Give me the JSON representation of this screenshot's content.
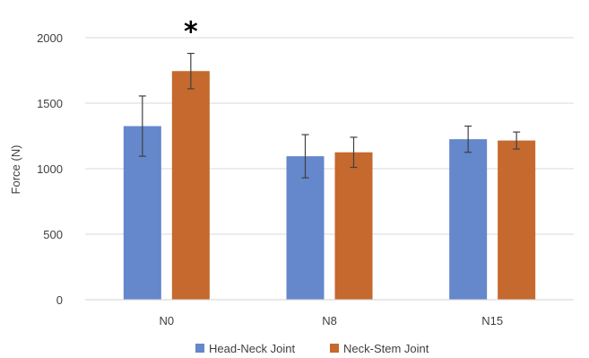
{
  "chart_data": {
    "type": "bar",
    "categories": [
      "N0",
      "N8",
      "N15"
    ],
    "series": [
      {
        "name": "Head-Neck Joint",
        "color": "#6587CB",
        "values": [
          1325,
          1095,
          1225
        ],
        "errors": [
          230,
          165,
          100
        ]
      },
      {
        "name": "Neck-Stem Joint",
        "color": "#C5692E",
        "values": [
          1745,
          1125,
          1215
        ],
        "errors": [
          135,
          115,
          65
        ]
      }
    ],
    "ylabel": "Force (N)",
    "xlabel": "",
    "ylim": [
      0,
      2000
    ],
    "yticks": [
      0,
      500,
      1000,
      1500,
      2000
    ],
    "grid": true,
    "legend_position": "bottom",
    "annotations": [
      {
        "text": "*",
        "category": "N0",
        "series": 1
      }
    ]
  }
}
